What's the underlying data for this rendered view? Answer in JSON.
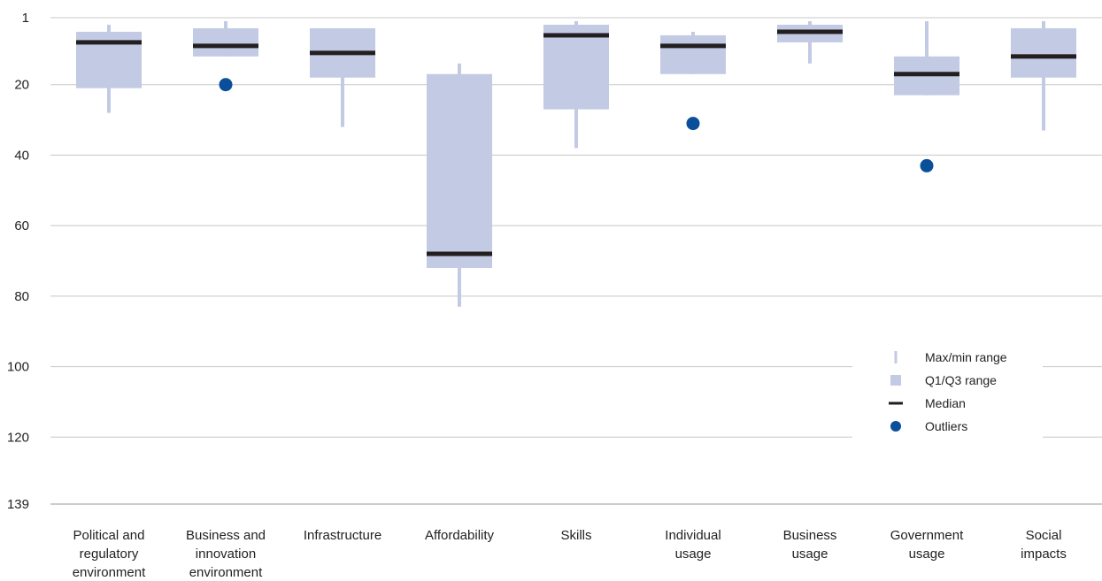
{
  "chart_data": {
    "type": "box",
    "title": "",
    "xlabel": "",
    "ylabel": "",
    "y_reversed": true,
    "ylim": [
      1,
      139
    ],
    "yticks": [
      1,
      20,
      40,
      60,
      80,
      100,
      120,
      139
    ],
    "grid": "horizontal",
    "legend_position": "bottom-right",
    "categories": [
      [
        "Political and",
        "regulatory",
        "environment"
      ],
      [
        "Business and",
        "innovation",
        "environment"
      ],
      [
        "Infrastructure"
      ],
      [
        "Affordability"
      ],
      [
        "Skills"
      ],
      [
        "Individual",
        "usage"
      ],
      [
        "Business",
        "usage"
      ],
      [
        "Government",
        "usage"
      ],
      [
        "Social",
        "impacts"
      ]
    ],
    "series": [
      {
        "min": 3,
        "q1": 5,
        "median": 8,
        "q3": 21,
        "max": 28,
        "outliers": []
      },
      {
        "min": 2,
        "q1": 4,
        "median": 9,
        "q3": 12,
        "max": 12,
        "outliers": [
          20
        ]
      },
      {
        "min": 4,
        "q1": 4,
        "median": 11,
        "q3": 18,
        "max": 32,
        "outliers": []
      },
      {
        "min": 14,
        "q1": 17,
        "median": 68,
        "q3": 72,
        "max": 83,
        "outliers": []
      },
      {
        "min": 2,
        "q1": 3,
        "median": 6,
        "q3": 27,
        "max": 38,
        "outliers": []
      },
      {
        "min": 5,
        "q1": 6,
        "median": 9,
        "q3": 17,
        "max": 17,
        "outliers": [
          31
        ]
      },
      {
        "min": 2,
        "q1": 3,
        "median": 5,
        "q3": 8,
        "max": 14,
        "outliers": []
      },
      {
        "min": 2,
        "q1": 12,
        "median": 17,
        "q3": 23,
        "max": 23,
        "outliers": [
          43
        ]
      },
      {
        "min": 2,
        "q1": 4,
        "median": 12,
        "q3": 18,
        "max": 33,
        "outliers": []
      }
    ],
    "legend": [
      {
        "key": "range",
        "label": "Max/min range"
      },
      {
        "key": "box",
        "label": "Q1/Q3 range"
      },
      {
        "key": "median",
        "label": "Median"
      },
      {
        "key": "outlier",
        "label": "Outliers"
      }
    ],
    "colors": {
      "box": "#c2cae4",
      "median": "#231f20",
      "outlier": "#0a4f9a",
      "grid": "#c8c8c8",
      "axis": "#9a9a9a",
      "text": "#222222"
    }
  }
}
